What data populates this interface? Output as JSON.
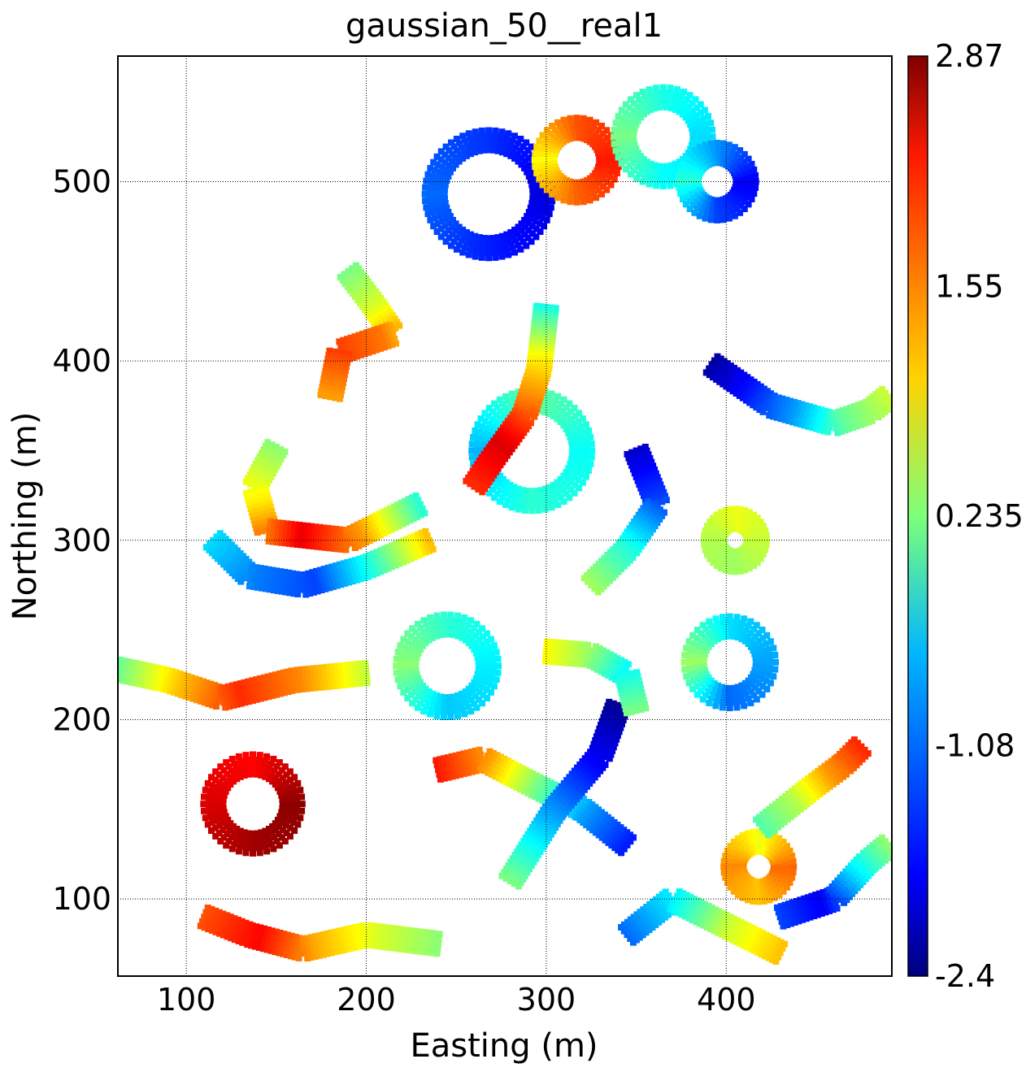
{
  "chart_data": {
    "type": "heatmap",
    "title": "gaussian_50__real1",
    "xlabel": "Easting (m)",
    "ylabel": "Northing (m)",
    "xlim": [
      62,
      492
    ],
    "ylim": [
      57,
      570
    ],
    "xticks": [
      100,
      200,
      300,
      400
    ],
    "yticks": [
      100,
      200,
      300,
      400,
      500
    ],
    "grid": true,
    "colormap": "jet",
    "colorbar": {
      "vmin": -2.4,
      "vmax": 2.87,
      "ticks": [
        {
          "value": 2.87,
          "label": "2.87"
        },
        {
          "value": 1.55,
          "label": "1.55"
        },
        {
          "value": 0.235,
          "label": "0.235"
        },
        {
          "value": -1.08,
          "label": "-1.08"
        },
        {
          "value": -2.4,
          "label": "-2.4"
        }
      ]
    },
    "approx_features": [
      {
        "shape": "ring",
        "cx": 268,
        "cy": 493,
        "r": 30,
        "values": [
          -1.9,
          -1.5,
          -1.2,
          -1.6
        ]
      },
      {
        "shape": "ring",
        "cx": 317,
        "cy": 512,
        "r": 18,
        "values": [
          2.1,
          1.8,
          0.9,
          1.7
        ]
      },
      {
        "shape": "ring",
        "cx": 365,
        "cy": 525,
        "r": 22,
        "values": [
          -0.6,
          -0.3,
          0.2,
          -0.4
        ]
      },
      {
        "shape": "ring",
        "cx": 395,
        "cy": 500,
        "r": 16,
        "values": [
          -1.8,
          -1.0,
          -0.2,
          -1.4
        ]
      },
      {
        "shape": "ring",
        "cx": 137,
        "cy": 153,
        "r": 22,
        "values": [
          2.8,
          2.2,
          2.4,
          2.7
        ]
      },
      {
        "shape": "ring",
        "cx": 245,
        "cy": 230,
        "r": 23,
        "values": [
          -0.5,
          -0.2,
          0.3,
          -0.7
        ]
      },
      {
        "shape": "ring",
        "cx": 402,
        "cy": 232,
        "r": 20,
        "values": [
          -0.9,
          -0.6,
          0.4,
          -1.2
        ]
      },
      {
        "shape": "ring",
        "cx": 405,
        "cy": 300,
        "r": 12,
        "values": [
          0.6,
          0.8,
          0.5,
          0.4
        ]
      },
      {
        "shape": "ring",
        "cx": 418,
        "cy": 118,
        "r": 14,
        "values": [
          1.7,
          0.8,
          1.5,
          1.2
        ]
      },
      {
        "shape": "ring",
        "cx": 292,
        "cy": 350,
        "r": 28,
        "values": [
          -0.4,
          0.1,
          -0.8,
          -0.2
        ]
      },
      {
        "shape": "path",
        "values": [
          0.1,
          1.2,
          2.0,
          1.5,
          0.6
        ],
        "points": [
          [
            62,
            228
          ],
          [
            90,
            222
          ],
          [
            120,
            212
          ],
          [
            160,
            222
          ],
          [
            200,
            226
          ]
        ]
      },
      {
        "shape": "path",
        "values": [
          -0.3,
          0.9,
          1.6,
          2.4,
          2.0
        ],
        "points": [
          [
            300,
            430
          ],
          [
            296,
            395
          ],
          [
            288,
            370
          ],
          [
            270,
            345
          ],
          [
            260,
            330
          ]
        ]
      },
      {
        "shape": "path",
        "values": [
          0.3,
          1.0,
          2.3,
          1.4,
          -0.2
        ],
        "points": [
          [
            150,
            352
          ],
          [
            138,
            330
          ],
          [
            145,
            305
          ],
          [
            190,
            300
          ],
          [
            230,
            320
          ]
        ]
      },
      {
        "shape": "path",
        "values": [
          -0.6,
          -1.1,
          -1.4,
          -0.2,
          1.2
        ],
        "points": [
          [
            115,
            300
          ],
          [
            135,
            280
          ],
          [
            165,
            275
          ],
          [
            200,
            285
          ],
          [
            235,
            300
          ]
        ]
      },
      {
        "shape": "path",
        "values": [
          -2.2,
          -1.6,
          -0.9,
          0.1,
          0.6
        ],
        "points": [
          [
            392,
            398
          ],
          [
            425,
            375
          ],
          [
            460,
            365
          ],
          [
            480,
            372
          ],
          [
            490,
            380
          ]
        ]
      },
      {
        "shape": "path",
        "values": [
          -2.0,
          -1.4,
          -0.3,
          0.4
        ],
        "points": [
          [
            350,
            350
          ],
          [
            362,
            320
          ],
          [
            345,
            295
          ],
          [
            325,
            275
          ]
        ]
      },
      {
        "shape": "path",
        "values": [
          2.1,
          1.4,
          0.2,
          -0.9,
          -1.6
        ],
        "points": [
          [
            240,
            172
          ],
          [
            265,
            178
          ],
          [
            290,
            165
          ],
          [
            320,
            150
          ],
          [
            345,
            130
          ]
        ]
      },
      {
        "shape": "path",
        "values": [
          -2.3,
          -1.7,
          -0.8,
          0.2
        ],
        "points": [
          [
            340,
            208
          ],
          [
            330,
            180
          ],
          [
            305,
            150
          ],
          [
            280,
            110
          ]
        ]
      },
      {
        "shape": "path",
        "values": [
          1.8,
          2.2,
          1.3,
          0.7,
          0.3
        ],
        "points": [
          [
            110,
            90
          ],
          [
            135,
            80
          ],
          [
            165,
            72
          ],
          [
            200,
            80
          ],
          [
            240,
            75
          ]
        ]
      },
      {
        "shape": "path",
        "values": [
          -1.2,
          -0.5,
          0.6,
          1.2
        ],
        "points": [
          [
            345,
            80
          ],
          [
            370,
            100
          ],
          [
            400,
            85
          ],
          [
            430,
            70
          ]
        ]
      },
      {
        "shape": "path",
        "values": [
          0.0,
          0.5,
          1.4,
          2.0
        ],
        "points": [
          [
            420,
            140
          ],
          [
            445,
            160
          ],
          [
            465,
            175
          ],
          [
            475,
            185
          ]
        ]
      },
      {
        "shape": "path",
        "values": [
          -1.4,
          -1.8,
          -0.6,
          0.3
        ],
        "points": [
          [
            430,
            90
          ],
          [
            460,
            100
          ],
          [
            478,
            120
          ],
          [
            490,
            130
          ]
        ]
      },
      {
        "shape": "path",
        "values": [
          0.9,
          0.4,
          -0.4,
          0.2
        ],
        "points": [
          [
            300,
            238
          ],
          [
            325,
            236
          ],
          [
            345,
            225
          ],
          [
            350,
            205
          ]
        ]
      },
      {
        "shape": "path",
        "values": [
          0.2,
          0.7,
          1.6,
          1.9,
          1.4
        ],
        "points": [
          [
            190,
            450
          ],
          [
            205,
            430
          ],
          [
            215,
            415
          ],
          [
            185,
            405
          ],
          [
            180,
            380
          ]
        ]
      }
    ]
  }
}
